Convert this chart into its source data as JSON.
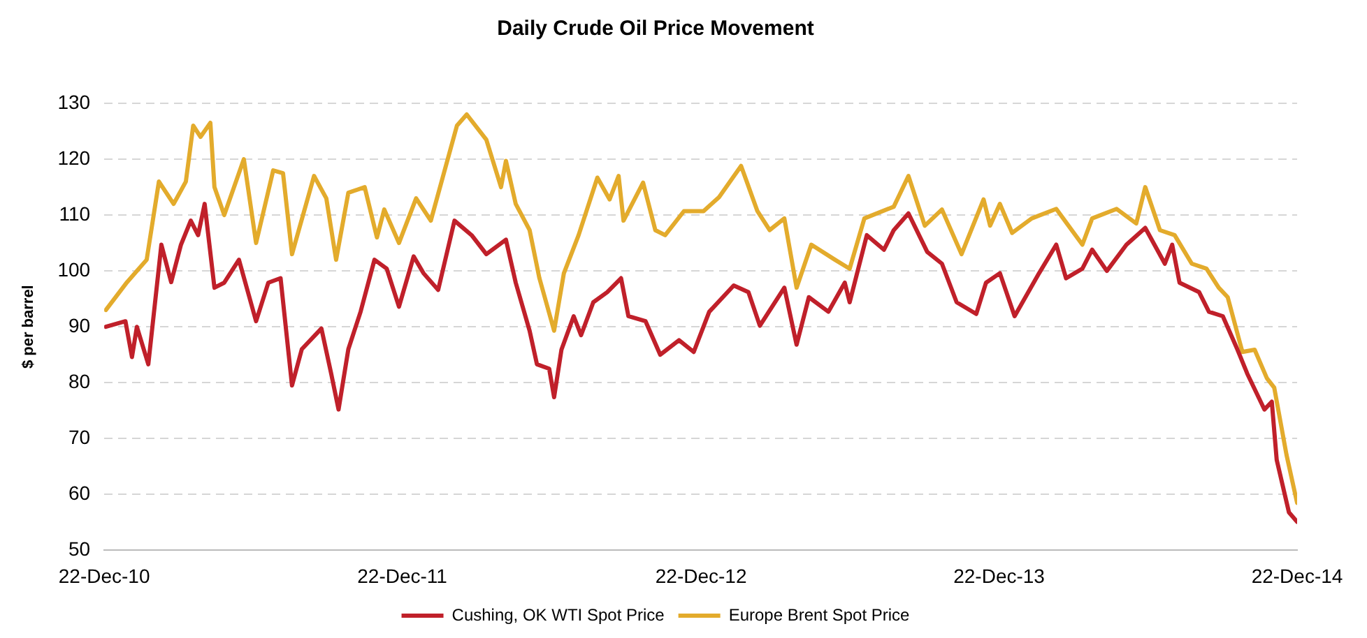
{
  "chart_data": {
    "type": "line",
    "title": "Daily Crude Oil Price Movement",
    "ylabel": "$ per barrel",
    "xlim": [
      "2010-12-22",
      "2014-12-22"
    ],
    "xticks": [
      {
        "value": "2010-12-22",
        "label": "22-Dec-10"
      },
      {
        "value": "2011-12-22",
        "label": "22-Dec-11"
      },
      {
        "value": "2012-12-22",
        "label": "22-Dec-12"
      },
      {
        "value": "2013-12-22",
        "label": "22-Dec-13"
      },
      {
        "value": "2014-12-22",
        "label": "22-Dec-14"
      }
    ],
    "ylim": [
      50,
      130
    ],
    "yticks": [
      50,
      60,
      70,
      80,
      90,
      100,
      110,
      120,
      130
    ],
    "grid": "y",
    "legend": "bottom",
    "marker": "none",
    "line_style": "solid",
    "series": [
      {
        "name": "Cushing, OK WTI Spot Price",
        "color": "#c0202a",
        "x": [
          "2010-12-24",
          "2011-01-17",
          "2011-01-25",
          "2011-01-31",
          "2011-02-14",
          "2011-03-02",
          "2011-03-14",
          "2011-03-26",
          "2011-04-07",
          "2011-04-16",
          "2011-04-24",
          "2011-05-06",
          "2011-05-18",
          "2011-06-05",
          "2011-06-26",
          "2011-07-11",
          "2011-07-26",
          "2011-08-09",
          "2011-08-21",
          "2011-09-14",
          "2011-09-26",
          "2011-10-05",
          "2011-10-17",
          "2011-11-01",
          "2011-11-18",
          "2011-12-03",
          "2011-12-18",
          "2012-01-05",
          "2012-01-17",
          "2012-02-04",
          "2012-02-24",
          "2012-03-16",
          "2012-04-03",
          "2012-04-27",
          "2012-05-09",
          "2012-05-26",
          "2012-06-04",
          "2012-06-19",
          "2012-06-25",
          "2012-07-04",
          "2012-07-19",
          "2012-07-28",
          "2012-08-12",
          "2012-08-29",
          "2012-09-15",
          "2012-09-24",
          "2012-10-15",
          "2012-11-02",
          "2012-11-25",
          "2012-12-13",
          "2013-01-01",
          "2013-01-31",
          "2013-02-18",
          "2013-03-04",
          "2013-04-03",
          "2013-04-18",
          "2013-05-03",
          "2013-05-27",
          "2013-06-16",
          "2013-06-22",
          "2013-07-13",
          "2013-08-03",
          "2013-08-15",
          "2013-09-02",
          "2013-09-25",
          "2013-10-13",
          "2013-10-31",
          "2013-11-24",
          "2013-12-06",
          "2013-12-23",
          "2014-01-10",
          "2014-02-09",
          "2014-03-02",
          "2014-03-14",
          "2014-04-03",
          "2014-04-15",
          "2014-05-03",
          "2014-05-27",
          "2014-06-19",
          "2014-07-13",
          "2014-07-22",
          "2014-07-31",
          "2014-08-24",
          "2014-09-05",
          "2014-09-22",
          "2014-10-10",
          "2014-10-22",
          "2014-11-12",
          "2014-11-21",
          "2014-11-27",
          "2014-12-12",
          "2014-12-22"
        ],
        "values": [
          90,
          91,
          84.6,
          90,
          83.3,
          104.7,
          98,
          104.7,
          109,
          106.4,
          112,
          97,
          97.9,
          102,
          91,
          97.9,
          98.7,
          79.5,
          86,
          89.7,
          81.6,
          75.2,
          86,
          92.7,
          102,
          100.4,
          93.6,
          102.6,
          99.6,
          96.6,
          109,
          106.4,
          103,
          105.6,
          97.9,
          89.3,
          83.3,
          82.5,
          77.4,
          85.9,
          91.9,
          88.5,
          94.4,
          96.2,
          98.7,
          91.9,
          91,
          85,
          87.6,
          85.5,
          92.7,
          97.4,
          96.2,
          90.2,
          97,
          86.8,
          95.3,
          92.7,
          97.9,
          94.4,
          106.4,
          103.8,
          107.3,
          110.3,
          103.4,
          101.3,
          94.4,
          92.3,
          97.9,
          99.6,
          91.9,
          99.6,
          104.7,
          98.7,
          100.4,
          103.8,
          100,
          104.7,
          107.7,
          101.3,
          104.7,
          97.9,
          96.2,
          92.7,
          91.9,
          85.9,
          81.6,
          75.2,
          76.6,
          66.2,
          56.8,
          55.1
        ]
      },
      {
        "name": "Europe Brent Spot Price",
        "color": "#e3ab2c",
        "x": [
          "2010-12-24",
          "2011-01-19",
          "2011-02-12",
          "2011-02-27",
          "2011-03-17",
          "2011-04-01",
          "2011-04-10",
          "2011-04-19",
          "2011-05-01",
          "2011-05-06",
          "2011-05-18",
          "2011-06-11",
          "2011-06-26",
          "2011-07-17",
          "2011-07-29",
          "2011-08-09",
          "2011-09-05",
          "2011-09-20",
          "2011-10-02",
          "2011-10-17",
          "2011-11-06",
          "2011-11-21",
          "2011-11-30",
          "2011-12-18",
          "2012-01-08",
          "2012-01-26",
          "2012-02-27",
          "2012-03-10",
          "2012-04-03",
          "2012-04-21",
          "2012-04-27",
          "2012-05-09",
          "2012-05-26",
          "2012-06-07",
          "2012-06-25",
          "2012-07-07",
          "2012-07-25",
          "2012-08-17",
          "2012-09-01",
          "2012-09-12",
          "2012-09-18",
          "2012-10-12",
          "2012-10-27",
          "2012-11-08",
          "2012-12-01",
          "2012-12-25",
          "2013-01-13",
          "2013-02-09",
          "2013-03-01",
          "2013-03-16",
          "2013-04-03",
          "2013-04-18",
          "2013-05-06",
          "2013-06-04",
          "2013-06-22",
          "2013-07-10",
          "2013-08-15",
          "2013-09-02",
          "2013-09-22",
          "2013-10-13",
          "2013-11-06",
          "2013-12-03",
          "2013-12-11",
          "2013-12-23",
          "2014-01-07",
          "2014-01-31",
          "2014-03-02",
          "2014-04-03",
          "2014-04-15",
          "2014-05-15",
          "2014-06-08",
          "2014-06-19",
          "2014-07-07",
          "2014-07-25",
          "2014-08-15",
          "2014-09-02",
          "2014-09-17",
          "2014-09-28",
          "2014-10-16",
          "2014-10-31",
          "2014-11-15",
          "2014-11-24",
          "2014-12-09",
          "2014-12-22"
        ],
        "values": [
          93,
          98,
          102,
          116,
          112,
          116,
          126,
          124,
          126.5,
          115,
          110,
          120,
          105,
          118,
          117.5,
          103,
          117,
          113,
          102,
          114,
          115,
          106,
          111,
          105,
          113,
          109,
          126,
          128,
          123.5,
          115,
          119.7,
          112,
          107.3,
          98.7,
          89.3,
          99.6,
          106.4,
          116.7,
          112.8,
          117,
          109,
          115.8,
          107.3,
          106.4,
          110.7,
          110.7,
          113.2,
          118.8,
          110.7,
          107.3,
          109.4,
          97,
          104.7,
          102,
          100.4,
          109.4,
          111.5,
          117,
          108.1,
          111,
          103,
          112.8,
          108.1,
          112,
          106.8,
          109.4,
          111.1,
          104.7,
          109.4,
          111.1,
          108.5,
          115,
          107.3,
          106.4,
          101.3,
          100.4,
          97,
          95.3,
          85.5,
          85.9,
          80.8,
          79.1,
          67.1,
          58.5
        ]
      }
    ]
  }
}
